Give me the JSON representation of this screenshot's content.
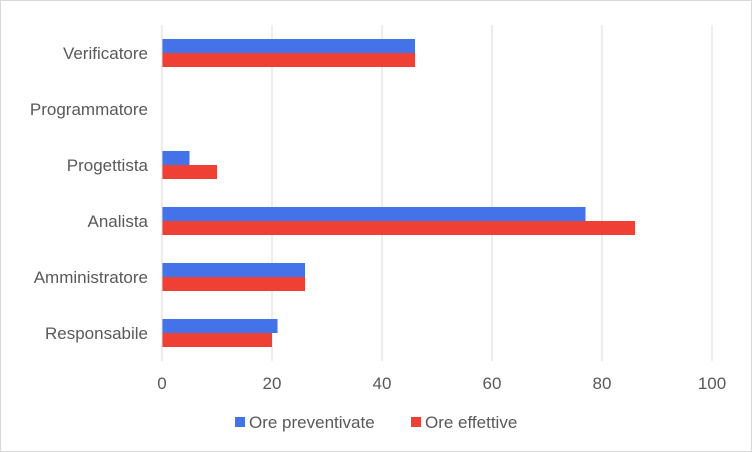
{
  "chart_data": {
    "type": "bar",
    "orientation": "horizontal",
    "categories": [
      "Verificatore",
      "Programmatore",
      "Progettista",
      "Analista",
      "Amministratore",
      "Responsabile"
    ],
    "series": [
      {
        "name": "Ore preventivate",
        "color": "#4472e8",
        "values": [
          46,
          0,
          5,
          77,
          26,
          21
        ]
      },
      {
        "name": "Ore effettive",
        "color": "#ee4035",
        "values": [
          46,
          0,
          10,
          86,
          26,
          20
        ]
      }
    ],
    "xlim": [
      0,
      100
    ],
    "xticks": [
      "0",
      "20",
      "40",
      "60",
      "80",
      "100"
    ],
    "grid": true,
    "legend_position": "bottom",
    "title": "",
    "xlabel": "",
    "ylabel": ""
  }
}
